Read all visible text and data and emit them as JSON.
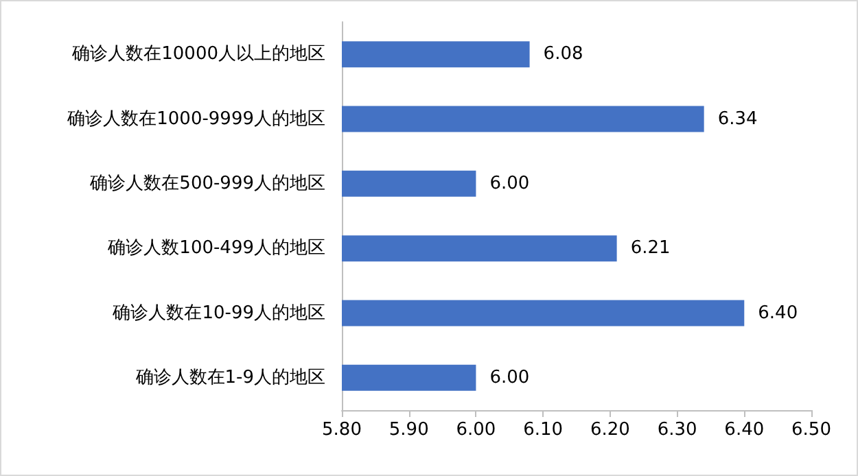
{
  "chart_data": {
    "type": "bar",
    "orientation": "horizontal",
    "categories": [
      "确诊人数在10000人以上的地区",
      "确诊人数在1000-9999人的地区",
      "确诊人数在500-999人的地区",
      "确诊人数100-499人的地区",
      "确诊人数在10-99人的地区",
      "确诊人数在1-9人的地区"
    ],
    "values": [
      6.08,
      6.34,
      6.0,
      6.21,
      6.4,
      6.0
    ],
    "value_labels": [
      "6.08",
      "6.34",
      "6.00",
      "6.21",
      "6.40",
      "6.00"
    ],
    "color": "#4472c4",
    "xlim": [
      5.8,
      6.5
    ],
    "xticks": [
      {
        "value": 5.8,
        "label": "5.80"
      },
      {
        "value": 5.9,
        "label": "5.90"
      },
      {
        "value": 6.0,
        "label": "6.00"
      },
      {
        "value": 6.1,
        "label": "6.10"
      },
      {
        "value": 6.2,
        "label": "6.20"
      },
      {
        "value": 6.3,
        "label": "6.30"
      },
      {
        "value": 6.4,
        "label": "6.40"
      },
      {
        "value": 6.5,
        "label": "6.50"
      }
    ],
    "grid": false
  }
}
